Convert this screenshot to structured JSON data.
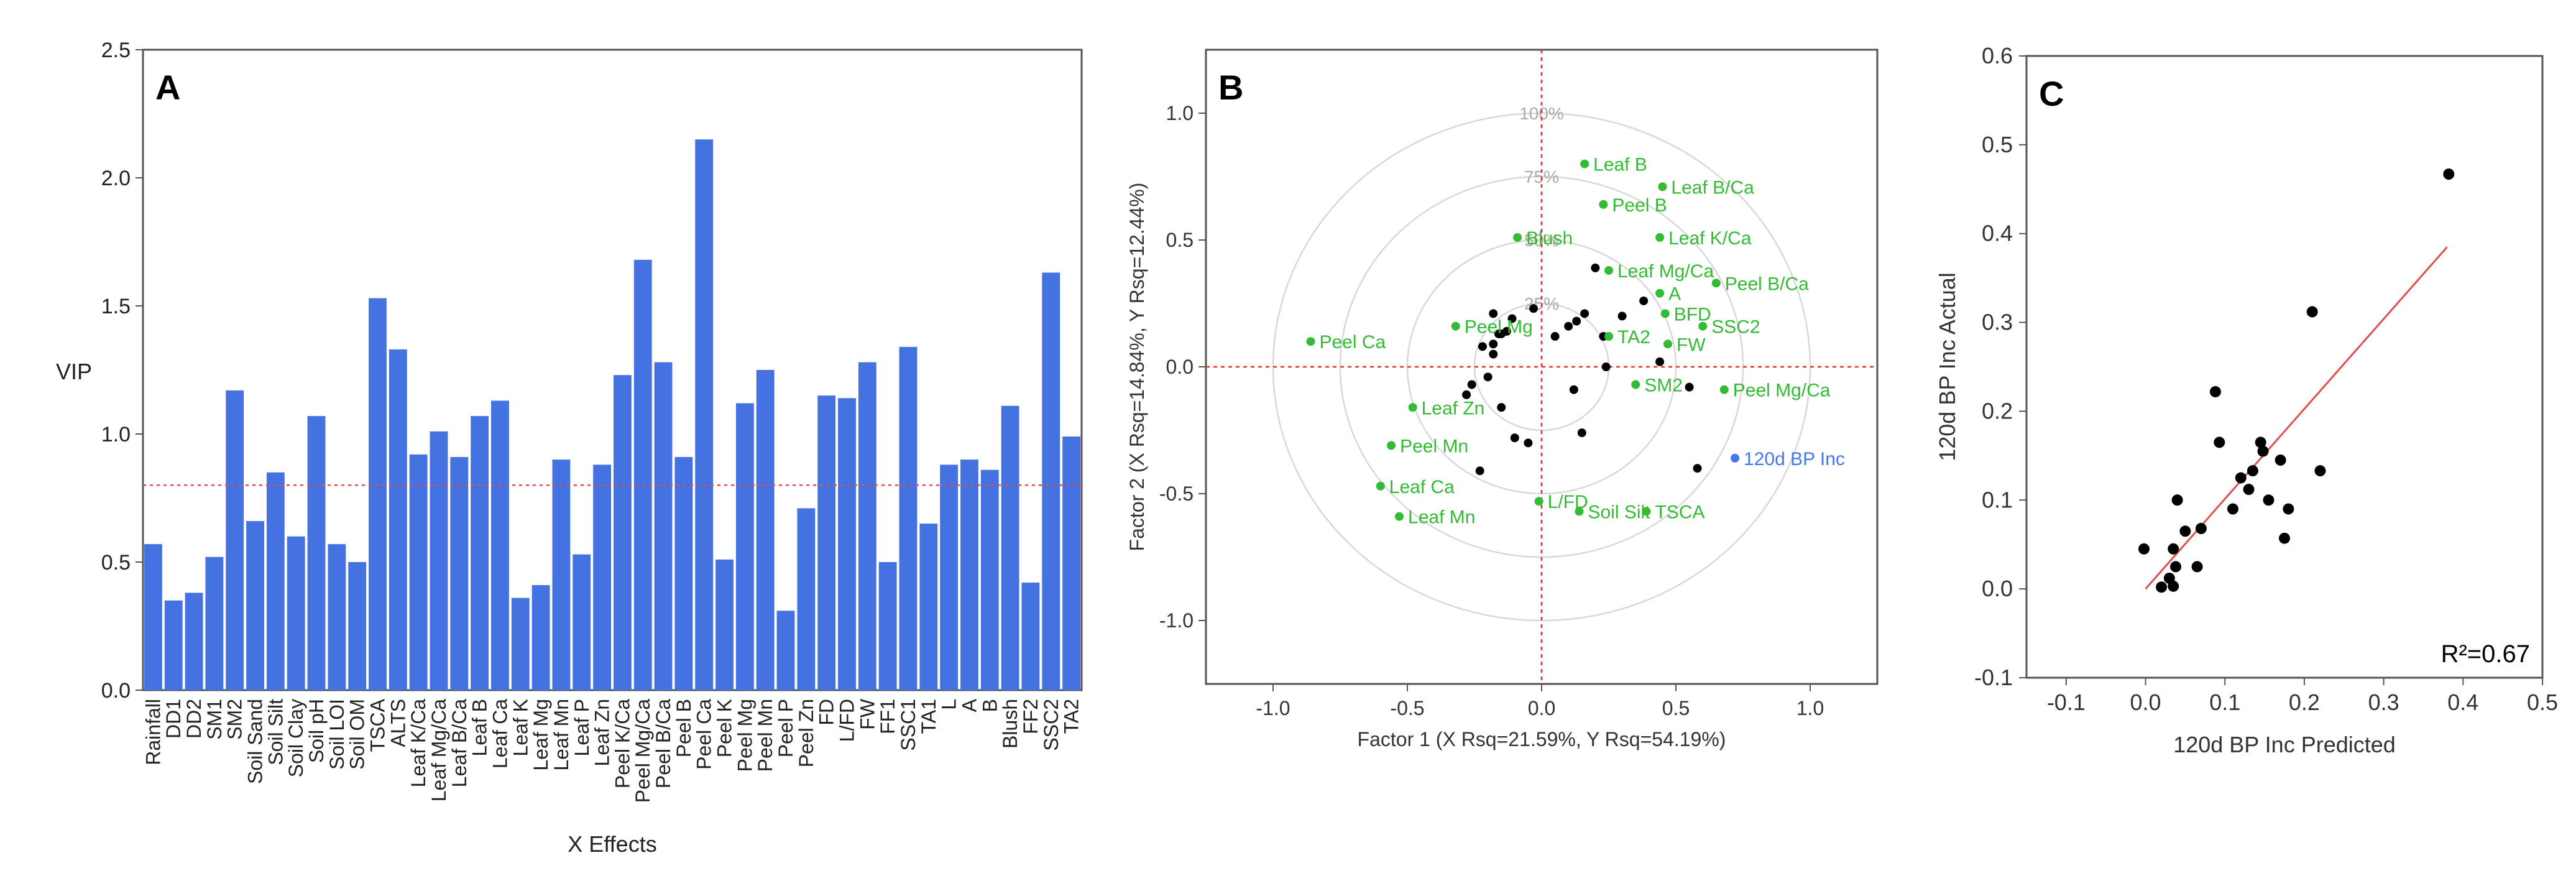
{
  "chart_data": [
    {
      "panel_label": "A",
      "type": "bar",
      "xlabel": "X Effects",
      "ylabel": "VIP",
      "ylim": [
        0,
        2.5
      ],
      "yticks": [
        "0.0",
        "0.5",
        "1.0",
        "1.5",
        "2.0",
        "2.5"
      ],
      "reference_line": 0.8,
      "bar_color": "#4472e0",
      "categories": [
        "Rainfall",
        "DD1",
        "DD2",
        "SM1",
        "SM2",
        "Soil Sand",
        "Soil Silt",
        "Soil Clay",
        "Soil pH",
        "Soil LOI",
        "Soil OM",
        "TSCA",
        "ALTS",
        "Leaf K/Ca",
        "Leaf Mg/Ca",
        "Leaf B/Ca",
        "Leaf B",
        "Leaf Ca",
        "Leaf K",
        "Leaf Mg",
        "Leaf Mn",
        "Leaf P",
        "Leaf Zn",
        "Peel K/Ca",
        "Peel Mg/Ca",
        "Peel B/Ca",
        "Peel B",
        "Peel Ca",
        "Peel K",
        "Peel Mg",
        "Peel Mn",
        "Peel P",
        "Peel Zn",
        "FD",
        "L/FD",
        "FW",
        "FF1",
        "SSC1",
        "TA1",
        "L",
        "A",
        "B",
        "Blush",
        "FF2",
        "SSC2",
        "TA2"
      ],
      "values": [
        0.57,
        0.35,
        0.38,
        0.52,
        1.17,
        0.66,
        0.85,
        0.6,
        1.07,
        0.57,
        0.5,
        1.53,
        1.33,
        0.92,
        1.01,
        0.91,
        1.07,
        1.13,
        0.36,
        0.41,
        0.9,
        0.53,
        0.88,
        1.23,
        1.68,
        1.28,
        0.91,
        2.15,
        0.51,
        1.12,
        1.25,
        0.31,
        0.71,
        1.15,
        1.14,
        1.28,
        0.5,
        1.34,
        0.65,
        0.88,
        0.9,
        0.86,
        1.11,
        0.42,
        1.63,
        0.99
      ]
    },
    {
      "panel_label": "B",
      "type": "scatter",
      "xlabel": "Factor 1 (X Rsq=21.59%, Y Rsq=54.19%)",
      "ylabel": "Factor 2 (X Rsq=14.84%, Y Rsq=12.44%)",
      "xlim": [
        -1.25,
        1.25
      ],
      "ylim": [
        -1.25,
        1.25
      ],
      "xticks": [
        "-1.0",
        "-0.5",
        "0.0",
        "0.5",
        "1.0"
      ],
      "yticks": [
        "-1.0",
        "-0.5",
        "0.0",
        "0.5",
        "1.0"
      ],
      "circle_radii": [
        0.25,
        0.5,
        0.75,
        1.0
      ],
      "circle_labels": [
        "25%",
        "50%",
        "75%",
        "100%"
      ],
      "colors": {
        "x_loading": "#33bb33",
        "y_loading": "#4477ee",
        "score": "#000000",
        "circle": "#d8d8d8",
        "axis_line": "#e03030"
      },
      "x_loadings": [
        {
          "label": "Leaf B",
          "x": 0.16,
          "y": 0.8
        },
        {
          "label": "Leaf B/Ca",
          "x": 0.45,
          "y": 0.71
        },
        {
          "label": "Peel B",
          "x": 0.23,
          "y": 0.64
        },
        {
          "label": "Leaf K/Ca",
          "x": 0.44,
          "y": 0.51
        },
        {
          "label": "Blush",
          "x": -0.09,
          "y": 0.51
        },
        {
          "label": "Leaf Mg/Ca",
          "x": 0.25,
          "y": 0.38
        },
        {
          "label": "Peel B/Ca",
          "x": 0.65,
          "y": 0.33
        },
        {
          "label": "A",
          "x": 0.44,
          "y": 0.29
        },
        {
          "label": "BFD",
          "x": 0.46,
          "y": 0.21
        },
        {
          "label": "SSC2",
          "x": 0.6,
          "y": 0.16
        },
        {
          "label": "TA2",
          "x": 0.25,
          "y": 0.12
        },
        {
          "label": "FW",
          "x": 0.47,
          "y": 0.09
        },
        {
          "label": "Peel Ca",
          "x": -0.86,
          "y": 0.1
        },
        {
          "label": "Peel Mg",
          "x": -0.32,
          "y": 0.16
        },
        {
          "label": "SM2",
          "x": 0.35,
          "y": -0.07
        },
        {
          "label": "Peel Mg/Ca",
          "x": 0.68,
          "y": -0.09
        },
        {
          "label": "Leaf Zn",
          "x": -0.48,
          "y": -0.16
        },
        {
          "label": "Peel Mn",
          "x": -0.56,
          "y": -0.31
        },
        {
          "label": "Leaf Ca",
          "x": -0.6,
          "y": -0.47
        },
        {
          "label": "Leaf Mn",
          "x": -0.53,
          "y": -0.59
        },
        {
          "label": "L/FD",
          "x": -0.01,
          "y": -0.53
        },
        {
          "label": "Soil Silt",
          "x": 0.14,
          "y": -0.57
        },
        {
          "label": "TSCA",
          "x": 0.39,
          "y": -0.57
        }
      ],
      "y_loadings": [
        {
          "label": "120d BP Inc",
          "x": 0.72,
          "y": -0.36
        }
      ],
      "scores": [
        [
          -0.18,
          0.21
        ],
        [
          -0.11,
          0.19
        ],
        [
          -0.13,
          0.14
        ],
        [
          -0.16,
          0.13
        ],
        [
          -0.18,
          0.09
        ],
        [
          -0.22,
          0.08
        ],
        [
          -0.2,
          -0.04
        ],
        [
          -0.26,
          -0.07
        ],
        [
          -0.15,
          -0.16
        ],
        [
          -0.28,
          -0.11
        ],
        [
          -0.18,
          0.05
        ],
        [
          -0.03,
          0.23
        ],
        [
          0.05,
          0.12
        ],
        [
          0.13,
          0.18
        ],
        [
          0.16,
          0.21
        ],
        [
          0.1,
          0.16
        ],
        [
          0.23,
          0.12
        ],
        [
          0.2,
          0.39
        ],
        [
          0.38,
          0.26
        ],
        [
          -0.05,
          -0.3
        ],
        [
          -0.1,
          -0.28
        ],
        [
          0.15,
          -0.26
        ],
        [
          0.12,
          -0.09
        ],
        [
          0.24,
          0.0
        ],
        [
          0.44,
          0.02
        ],
        [
          0.55,
          -0.08
        ],
        [
          0.58,
          -0.4
        ],
        [
          -0.23,
          -0.41
        ],
        [
          -0.15,
          0.13
        ],
        [
          0.3,
          0.2
        ]
      ]
    },
    {
      "panel_label": "C",
      "type": "scatter",
      "xlabel": "120d BP Inc Predicted",
      "ylabel": "120d BP Inc Actual",
      "xlim": [
        -0.15,
        0.5
      ],
      "ylim": [
        -0.1,
        0.6
      ],
      "xticks": [
        "-0.1",
        "0.0",
        "0.1",
        "0.2",
        "0.3",
        "0.4",
        "0.5"
      ],
      "yticks": [
        "-0.1",
        "0.0",
        "0.1",
        "0.2",
        "0.3",
        "0.4",
        "0.5",
        "0.6"
      ],
      "fit_line": {
        "x": [
          0.0,
          0.38
        ],
        "y": [
          0.0,
          0.385
        ],
        "color": "#e05050"
      },
      "annotation": "R²=0.67",
      "points": [
        [
          -0.002,
          0.045
        ],
        [
          0.02,
          0.002
        ],
        [
          0.03,
          0.012
        ],
        [
          0.035,
          0.003
        ],
        [
          0.038,
          0.025
        ],
        [
          0.035,
          0.045
        ],
        [
          0.04,
          0.1
        ],
        [
          0.05,
          0.065
        ],
        [
          0.065,
          0.025
        ],
        [
          0.07,
          0.068
        ],
        [
          0.088,
          0.222
        ],
        [
          0.093,
          0.165
        ],
        [
          0.11,
          0.09
        ],
        [
          0.12,
          0.125
        ],
        [
          0.13,
          0.112
        ],
        [
          0.135,
          0.133
        ],
        [
          0.145,
          0.165
        ],
        [
          0.148,
          0.155
        ],
        [
          0.155,
          0.1
        ],
        [
          0.17,
          0.145
        ],
        [
          0.175,
          0.057
        ],
        [
          0.18,
          0.09
        ],
        [
          0.21,
          0.312
        ],
        [
          0.22,
          0.133
        ],
        [
          0.382,
          0.467
        ]
      ]
    }
  ]
}
